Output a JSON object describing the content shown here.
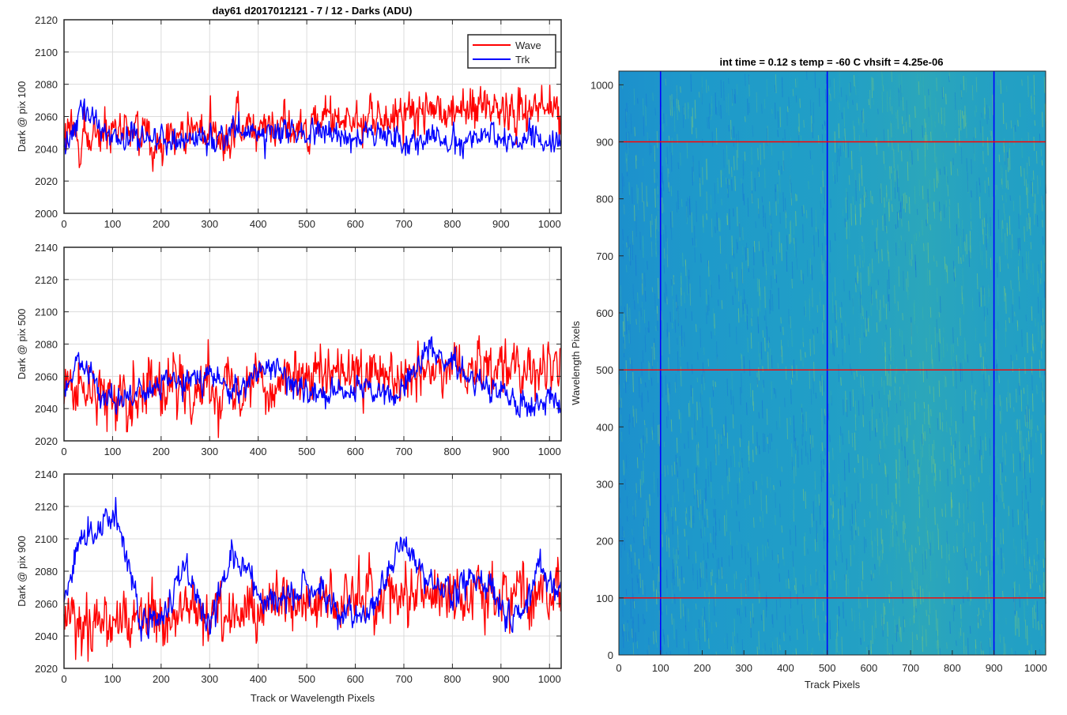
{
  "figure": {
    "left_title": "day61 d2017012121 - 7 / 12 - Darks (ADU)",
    "right_title": "int time = 0.12 s    temp = -60 C    vhsift = 4.25e-06"
  },
  "legend": {
    "entries": [
      "Wave",
      "Trk"
    ]
  },
  "colors": {
    "wave": "#ff0000",
    "trk": "#0000ff",
    "grid": "#dcdcdc",
    "axis": "#262626"
  },
  "chart_data": [
    {
      "type": "line",
      "title": "day61 d2017012121 - 7 / 12 - Darks (ADU)",
      "xlabel": "",
      "ylabel": "Dark @ pix 100",
      "xlim": [
        0,
        1024
      ],
      "ylim": [
        2000,
        2120
      ],
      "xticks": [
        0,
        100,
        200,
        300,
        400,
        500,
        600,
        700,
        800,
        900,
        1000
      ],
      "yticks": [
        2000,
        2020,
        2040,
        2060,
        2080,
        2100,
        2120
      ],
      "grid": true,
      "legend_position": "top-right",
      "series": [
        {
          "name": "Wave",
          "color": "#ff0000",
          "x": [
            0,
            100,
            200,
            300,
            400,
            500,
            600,
            700,
            800,
            900,
            1000,
            1024
          ],
          "values": [
            2046,
            2048,
            2049,
            2050,
            2052,
            2055,
            2058,
            2061,
            2064,
            2066,
            2065,
            2062
          ]
        },
        {
          "name": "Trk",
          "color": "#0000ff",
          "x": [
            0,
            40,
            100,
            200,
            300,
            400,
            500,
            600,
            700,
            800,
            900,
            1000,
            1024
          ],
          "values": [
            2044,
            2062,
            2048,
            2046,
            2048,
            2050,
            2049,
            2048,
            2047,
            2045,
            2046,
            2045,
            2043
          ]
        }
      ]
    },
    {
      "type": "line",
      "xlabel": "",
      "ylabel": "Dark @ pix 500",
      "xlim": [
        0,
        1024
      ],
      "ylim": [
        2020,
        2140
      ],
      "xticks": [
        0,
        100,
        200,
        300,
        400,
        500,
        600,
        700,
        800,
        900,
        1000
      ],
      "yticks": [
        2020,
        2040,
        2060,
        2080,
        2100,
        2120,
        2140
      ],
      "grid": true,
      "series": [
        {
          "name": "Wave",
          "color": "#ff0000",
          "x": [
            0,
            100,
            200,
            300,
            400,
            500,
            600,
            700,
            800,
            900,
            1000,
            1024
          ],
          "values": [
            2050,
            2051,
            2053,
            2055,
            2057,
            2058,
            2060,
            2063,
            2067,
            2068,
            2066,
            2062
          ]
        },
        {
          "name": "Trk",
          "color": "#0000ff",
          "x": [
            0,
            30,
            80,
            150,
            240,
            300,
            350,
            420,
            500,
            600,
            680,
            750,
            830,
            900,
            950,
            1000,
            1024
          ],
          "values": [
            2052,
            2070,
            2048,
            2047,
            2060,
            2062,
            2050,
            2068,
            2050,
            2052,
            2046,
            2078,
            2060,
            2052,
            2040,
            2048,
            2044
          ]
        }
      ]
    },
    {
      "type": "line",
      "xlabel": "Track or Wavelength Pixels",
      "ylabel": "Dark @ pix 900",
      "xlim": [
        0,
        1024
      ],
      "ylim": [
        2020,
        2140
      ],
      "xticks": [
        0,
        100,
        200,
        300,
        400,
        500,
        600,
        700,
        800,
        900,
        1000
      ],
      "yticks": [
        2020,
        2040,
        2060,
        2080,
        2100,
        2120,
        2140
      ],
      "grid": true,
      "series": [
        {
          "name": "Wave",
          "color": "#ff0000",
          "x": [
            0,
            100,
            200,
            300,
            400,
            500,
            600,
            700,
            800,
            900,
            1000,
            1024
          ],
          "values": [
            2052,
            2048,
            2050,
            2054,
            2058,
            2060,
            2063,
            2066,
            2067,
            2066,
            2067,
            2064
          ]
        },
        {
          "name": "Trk",
          "color": "#0000ff",
          "x": [
            0,
            30,
            60,
            105,
            140,
            160,
            200,
            250,
            300,
            345,
            400,
            450,
            500,
            560,
            620,
            700,
            740,
            800,
            850,
            900,
            940,
            980,
            1024
          ],
          "values": [
            2060,
            2100,
            2105,
            2115,
            2080,
            2048,
            2050,
            2080,
            2048,
            2092,
            2062,
            2060,
            2070,
            2056,
            2050,
            2098,
            2076,
            2064,
            2080,
            2060,
            2050,
            2082,
            2060
          ]
        }
      ]
    },
    {
      "type": "heatmap",
      "title": "int time = 0.12 s    temp = -60 C    vhsift = 4.25e-06",
      "xlabel": "Track Pixels",
      "ylabel": "Wavelength Pixels",
      "xlim": [
        0,
        1024
      ],
      "ylim": [
        0,
        1024
      ],
      "xticks": [
        0,
        100,
        200,
        300,
        400,
        500,
        600,
        700,
        800,
        900,
        1000
      ],
      "yticks": [
        0,
        100,
        200,
        300,
        400,
        500,
        600,
        700,
        800,
        900,
        1000
      ],
      "colormap": "parula",
      "vertical_marker_lines": {
        "color": "#0000ff",
        "x": [
          100,
          500,
          900
        ]
      },
      "horizontal_marker_lines": {
        "color": "#ff0000",
        "y": [
          100,
          500,
          900
        ]
      }
    }
  ]
}
